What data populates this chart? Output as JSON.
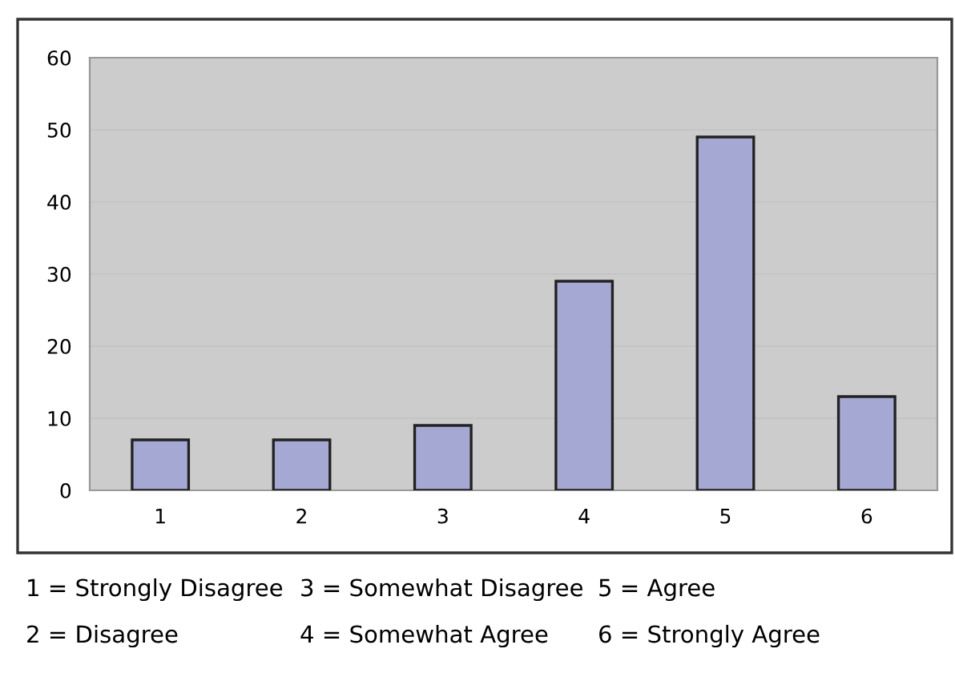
{
  "chart_data": {
    "type": "bar",
    "categories": [
      "1",
      "2",
      "3",
      "4",
      "5",
      "6"
    ],
    "values": [
      7,
      7,
      9,
      29,
      49,
      13
    ],
    "color": "#a6a8d4",
    "ylim": [
      0,
      60
    ],
    "yticks": [
      0,
      10,
      20,
      30,
      40,
      50,
      60
    ],
    "grid": "y",
    "annotations": [
      "1 = Strongly Disagree",
      "2 = Disagree",
      "3 = Somewhat Disagree",
      "4 = Somewhat Agree",
      "5 = Agree",
      "6 = Strongly Agree"
    ]
  }
}
